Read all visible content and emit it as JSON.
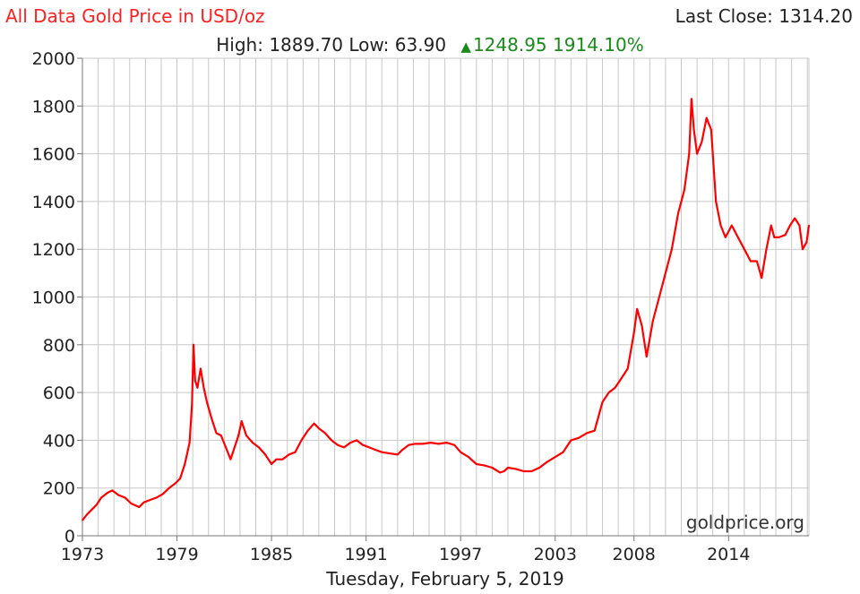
{
  "header": {
    "title": "All Data Gold Price in USD/oz",
    "last_close_label": "Last Close:",
    "last_close_value": "1314.20",
    "high_label": "High:",
    "high_value": "1889.70",
    "low_label": "Low:",
    "low_value": "63.90",
    "change_value": "1248.95",
    "change_percent": "1914.10%"
  },
  "watermark": "goldprice.org",
  "colors": {
    "title": "#ff2020",
    "series": "#ff0000",
    "up": "#1a8a1a",
    "grid": "#c8c8c8",
    "axis": "#777777"
  },
  "chart_data": {
    "type": "line",
    "xlabel": "Tuesday, February 5, 2019",
    "ylabel": "",
    "xlim": [
      1973,
      2019.1
    ],
    "ylim": [
      0,
      2000
    ],
    "grid": true,
    "x_tick_labels": [
      "1973",
      "1979",
      "1985",
      "1991",
      "1997",
      "2003",
      "2008",
      "2014"
    ],
    "y_tick_labels": [
      "0",
      "200",
      "400",
      "600",
      "800",
      "1000",
      "1200",
      "1400",
      "1600",
      "1800",
      "2000"
    ],
    "series": [
      {
        "name": "",
        "color": "#ff0000",
        "x": [
          1973.0,
          1973.3,
          1973.6,
          1973.9,
          1974.2,
          1974.6,
          1974.9,
          1975.3,
          1975.7,
          1976.1,
          1976.6,
          1976.9,
          1977.3,
          1977.7,
          1978.1,
          1978.5,
          1978.9,
          1979.2,
          1979.5,
          1979.8,
          1979.95,
          1980.05,
          1980.15,
          1980.3,
          1980.5,
          1980.7,
          1980.9,
          1981.2,
          1981.5,
          1981.8,
          1982.1,
          1982.4,
          1982.6,
          1982.9,
          1983.1,
          1983.4,
          1983.8,
          1984.2,
          1984.6,
          1985.0,
          1985.3,
          1985.7,
          1986.1,
          1986.5,
          1986.9,
          1987.3,
          1987.7,
          1988.0,
          1988.4,
          1988.8,
          1989.2,
          1989.6,
          1990.0,
          1990.4,
          1990.8,
          1991.2,
          1991.6,
          1992.0,
          1992.5,
          1993.0,
          1993.3,
          1993.7,
          1994.1,
          1994.6,
          1995.1,
          1995.6,
          1996.1,
          1996.6,
          1997.0,
          1997.5,
          1998.0,
          1998.5,
          1999.0,
          1999.5,
          1999.75,
          2000.0,
          2000.5,
          2001.0,
          2001.5,
          2002.0,
          2002.5,
          2003.0,
          2003.5,
          2004.0,
          2004.5,
          2005.0,
          2005.5,
          2006.0,
          2006.4,
          2006.8,
          2007.2,
          2007.6,
          2008.0,
          2008.2,
          2008.5,
          2008.8,
          2009.2,
          2009.6,
          2010.0,
          2010.4,
          2010.8,
          2011.2,
          2011.5,
          2011.65,
          2011.8,
          2012.0,
          2012.3,
          2012.6,
          2012.9,
          2013.2,
          2013.5,
          2013.8,
          2014.2,
          2014.6,
          2015.0,
          2015.4,
          2015.8,
          2016.1,
          2016.4,
          2016.7,
          2016.9,
          2017.2,
          2017.6,
          2017.9,
          2018.2,
          2018.5,
          2018.7,
          2018.95,
          2019.1
        ],
        "y": [
          65,
          90,
          110,
          130,
          160,
          180,
          190,
          170,
          160,
          135,
          120,
          140,
          150,
          160,
          175,
          200,
          220,
          240,
          300,
          390,
          550,
          800,
          650,
          620,
          700,
          620,
          560,
          490,
          430,
          420,
          370,
          320,
          360,
          420,
          480,
          420,
          390,
          370,
          340,
          300,
          320,
          320,
          340,
          350,
          400,
          440,
          470,
          450,
          430,
          400,
          380,
          370,
          390,
          400,
          380,
          370,
          360,
          350,
          345,
          340,
          360,
          380,
          385,
          385,
          390,
          385,
          390,
          380,
          350,
          330,
          300,
          295,
          285,
          265,
          270,
          285,
          280,
          270,
          270,
          285,
          310,
          330,
          350,
          400,
          410,
          430,
          440,
          560,
          600,
          620,
          660,
          700,
          850,
          950,
          880,
          750,
          900,
          1000,
          1100,
          1200,
          1350,
          1450,
          1600,
          1830,
          1700,
          1600,
          1650,
          1750,
          1700,
          1400,
          1300,
          1250,
          1300,
          1250,
          1200,
          1150,
          1150,
          1080,
          1200,
          1300,
          1250,
          1250,
          1260,
          1300,
          1330,
          1300,
          1200,
          1230,
          1300
        ]
      }
    ]
  }
}
